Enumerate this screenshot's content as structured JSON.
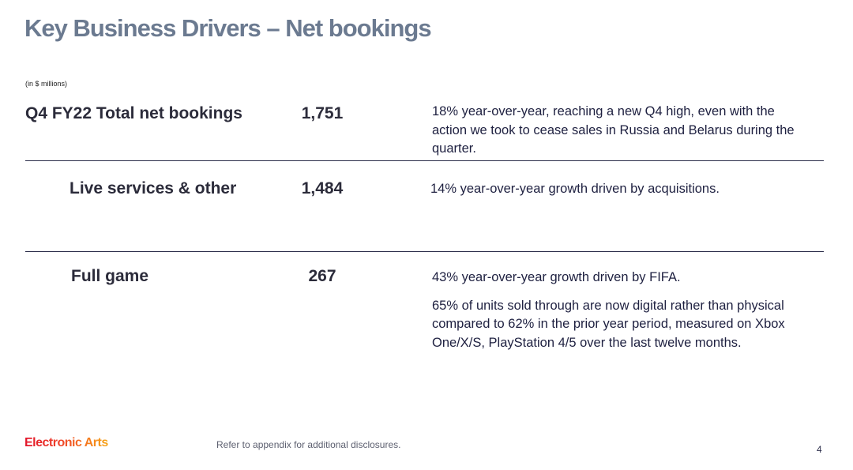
{
  "title": "Key Business Drivers – Net bookings",
  "units": "(in $ millions)",
  "rows": [
    {
      "label": "Q4 FY22 Total net bookings",
      "value": "1,751",
      "desc": [
        "18% year-over-year, reaching a new Q4 high, even with the action we took to cease sales in Russia and Belarus during the quarter."
      ]
    },
    {
      "label": "Live services & other",
      "value": "1,484",
      "desc": [
        "14% year-over-year growth driven by acquisitions."
      ]
    },
    {
      "label": "Full game",
      "value": "267",
      "desc": [
        "43% year-over-year growth driven by FIFA.",
        "65% of units sold through are now digital rather than physical compared to 62% in the prior year period, measured on Xbox One/X/S, PlayStation 4/5 over the last twelve months."
      ]
    }
  ],
  "footer": {
    "logo": "Electronic Arts",
    "note": "Refer to appendix for additional disclosures.",
    "page": "4"
  }
}
